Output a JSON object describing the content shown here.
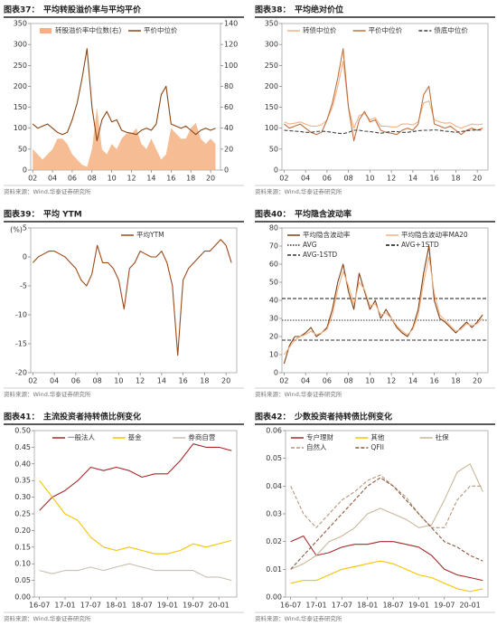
{
  "chart_data": [
    {
      "type": "line",
      "label": "图表37：",
      "title": "平均转股溢价率与平均平价",
      "source": "资料来源：Wind,华泰证券研究所",
      "x": [
        2,
        2.5,
        3,
        3.5,
        4,
        4.5,
        5,
        5.5,
        6,
        6.5,
        7,
        7.5,
        8,
        8.5,
        9,
        9.5,
        10,
        10.5,
        11,
        11.5,
        12,
        12.5,
        13,
        13.5,
        14,
        14.5,
        15,
        15.5,
        16,
        16.5,
        17,
        17.5,
        18,
        18.5,
        19,
        19.5,
        20,
        20.5
      ],
      "xlim": [
        1.8,
        21
      ],
      "xticks": [
        {
          "value": 2,
          "label": "02"
        },
        {
          "value": 4,
          "label": "04"
        },
        {
          "value": 6,
          "label": "06"
        },
        {
          "value": 8,
          "label": "08"
        },
        10,
        12,
        14,
        16,
        18,
        20
      ],
      "ylim": [
        0,
        350
      ],
      "yticks": [
        0,
        50,
        100,
        150,
        200,
        250,
        300,
        350
      ],
      "y2lim": [
        0,
        140
      ],
      "y2ticks": [
        0,
        20,
        40,
        60,
        80,
        100,
        120,
        140
      ],
      "series": [
        {
          "name": "转股溢价率中位数(右)",
          "color": "#f4b183",
          "style": "area",
          "axis": "y2",
          "values": [
            20,
            15,
            10,
            15,
            20,
            30,
            30,
            25,
            15,
            10,
            5,
            3,
            20,
            60,
            20,
            15,
            25,
            20,
            30,
            35,
            35,
            40,
            25,
            20,
            30,
            20,
            10,
            15,
            40,
            35,
            30,
            30,
            40,
            45,
            30,
            25,
            30,
            25
          ]
        },
        {
          "name": "平价中位价",
          "color": "#8b4513",
          "style": "solid",
          "values": [
            110,
            100,
            105,
            110,
            100,
            90,
            85,
            90,
            120,
            160,
            220,
            290,
            150,
            70,
            120,
            140,
            115,
            120,
            95,
            90,
            88,
            85,
            95,
            100,
            95,
            110,
            180,
            200,
            110,
            105,
            100,
            105,
            95,
            85,
            95,
            100,
            95,
            100
          ]
        }
      ]
    },
    {
      "type": "line",
      "label": "图表38：",
      "title": "平均绝对价位",
      "source": "资料来源：Wind,华泰证券研究所",
      "x": [
        2,
        2.5,
        3,
        3.5,
        4,
        4.5,
        5,
        5.5,
        6,
        6.5,
        7,
        7.5,
        8,
        8.5,
        9,
        9.5,
        10,
        10.5,
        11,
        11.5,
        12,
        12.5,
        13,
        13.5,
        14,
        14.5,
        15,
        15.5,
        16,
        16.5,
        17,
        17.5,
        18,
        18.5,
        19,
        19.5,
        20,
        20.5
      ],
      "xlim": [
        1.8,
        21
      ],
      "xticks": [
        {
          "value": 2,
          "label": "02"
        },
        {
          "value": 4,
          "label": "04"
        },
        {
          "value": 6,
          "label": "06"
        },
        {
          "value": 8,
          "label": "08"
        },
        10,
        12,
        14,
        16,
        18,
        20
      ],
      "ylim": [
        0,
        350
      ],
      "yticks": [
        0,
        50,
        100,
        150,
        200,
        250,
        300,
        350
      ],
      "series": [
        {
          "name": "转债中位价",
          "color": "#f4b183",
          "style": "solid",
          "values": [
            115,
            110,
            112,
            115,
            110,
            105,
            105,
            108,
            120,
            150,
            200,
            260,
            150,
            100,
            130,
            135,
            120,
            125,
            105,
            105,
            103,
            103,
            110,
            110,
            108,
            115,
            160,
            165,
            120,
            115,
            112,
            113,
            105,
            100,
            105,
            110,
            108,
            110
          ]
        },
        {
          "name": "平价中位价",
          "color": "#c07040",
          "style": "solid",
          "values": [
            110,
            100,
            105,
            110,
            100,
            90,
            85,
            90,
            120,
            160,
            220,
            290,
            150,
            70,
            120,
            140,
            115,
            120,
            95,
            90,
            88,
            85,
            95,
            100,
            95,
            110,
            180,
            200,
            110,
            105,
            100,
            105,
            95,
            85,
            95,
            100,
            95,
            100
          ]
        },
        {
          "name": "债底中位价",
          "color": "#404040",
          "style": "dashed",
          "values": [
            95,
            94,
            93,
            92,
            90,
            90,
            92,
            93,
            92,
            90,
            88,
            87,
            90,
            95,
            95,
            93,
            92,
            90,
            88,
            90,
            92,
            92,
            90,
            90,
            92,
            94,
            95,
            95,
            96,
            95,
            93,
            92,
            90,
            92,
            94,
            95,
            96,
            95
          ]
        }
      ]
    },
    {
      "type": "line",
      "label": "图表39：",
      "title": "平均 YTM",
      "source": "资料来源：Wind,华泰证券研究所",
      "y_label": "(%)",
      "x": [
        2,
        2.5,
        3,
        3.5,
        4,
        4.5,
        5,
        5.5,
        6,
        6.5,
        7,
        7.5,
        8,
        8.5,
        9,
        9.5,
        10,
        10.5,
        11,
        11.5,
        12,
        12.5,
        13,
        13.5,
        14,
        14.5,
        15,
        15.5,
        16,
        16.5,
        17,
        17.5,
        18,
        18.5,
        19,
        19.5,
        20,
        20.5
      ],
      "xlim": [
        1.8,
        21
      ],
      "xticks": [
        {
          "value": 2,
          "label": "02"
        },
        {
          "value": 4,
          "label": "04"
        },
        {
          "value": 6,
          "label": "06"
        },
        {
          "value": 8,
          "label": "08"
        },
        10,
        12,
        14,
        16,
        18,
        20
      ],
      "ylim": [
        -20,
        5
      ],
      "yticks": [
        -20,
        -15,
        -10,
        -5,
        0,
        5
      ],
      "series": [
        {
          "name": "平均YTM",
          "color": "#9c4a1a",
          "style": "solid",
          "values": [
            -1,
            0,
            0.5,
            1,
            1,
            0.5,
            0,
            -1,
            -2,
            -4,
            -5,
            -3,
            2,
            -1,
            -1,
            -2,
            -4,
            -9,
            -2,
            -1,
            1,
            0.5,
            0,
            0,
            1,
            -1,
            -5,
            -17,
            -4,
            -2,
            -1,
            0,
            1,
            1,
            2,
            3,
            2,
            -1
          ]
        }
      ]
    },
    {
      "type": "line",
      "label": "图表40：",
      "title": "平均隐含波动率",
      "source": "资料来源：Wind,华泰证券研究所",
      "x": [
        2,
        2.5,
        3,
        3.5,
        4,
        4.5,
        5,
        5.5,
        6,
        6.5,
        7,
        7.5,
        8,
        8.5,
        9,
        9.5,
        10,
        10.5,
        11,
        11.5,
        12,
        12.5,
        13,
        13.5,
        14,
        14.5,
        15,
        15.5,
        16,
        16.5,
        17,
        17.5,
        18,
        18.5,
        19,
        19.5,
        20,
        20.5
      ],
      "xlim": [
        1.8,
        21
      ],
      "xticks": [
        {
          "value": 2,
          "label": "02"
        },
        {
          "value": 4,
          "label": "04"
        },
        {
          "value": 6,
          "label": "06"
        },
        {
          "value": 8,
          "label": "08"
        },
        10,
        12,
        14,
        16,
        18,
        20
      ],
      "ylim": [
        0,
        80
      ],
      "yticks": [
        0,
        10,
        20,
        30,
        40,
        50,
        60,
        70,
        80
      ],
      "series": [
        {
          "name": "平均隐含波动率",
          "color": "#7f3f12",
          "style": "solid",
          "values": [
            5,
            15,
            20,
            20,
            22,
            25,
            20,
            22,
            25,
            35,
            50,
            60,
            45,
            35,
            55,
            45,
            35,
            40,
            30,
            35,
            30,
            25,
            22,
            20,
            25,
            35,
            55,
            70,
            40,
            30,
            28,
            25,
            22,
            25,
            28,
            25,
            28,
            32
          ]
        },
        {
          "name": "平均隐含波动率MA20",
          "color": "#f4b183",
          "style": "solid",
          "values": [
            10,
            14,
            18,
            20,
            21,
            23,
            21,
            22,
            24,
            32,
            46,
            56,
            48,
            38,
            50,
            46,
            37,
            38,
            32,
            33,
            30,
            26,
            23,
            21,
            24,
            32,
            50,
            64,
            44,
            32,
            29,
            26,
            23,
            24,
            27,
            26,
            27,
            30
          ]
        }
      ],
      "reference_lines": [
        {
          "name": "AVG",
          "value": 29,
          "color": "#333333",
          "style": "dotted"
        },
        {
          "name": "AVG+1STD",
          "value": 41,
          "color": "#111111",
          "style": "dashed"
        },
        {
          "name": "AVG-1STD",
          "value": 18,
          "color": "#333333",
          "style": "dashed"
        }
      ]
    },
    {
      "type": "line",
      "label": "图表41：",
      "title": "主流投资者持转债比例变化",
      "source": "资料来源：Wind,华泰证券研究所",
      "x": [
        16.5,
        16.75,
        17,
        17.25,
        17.5,
        17.75,
        18,
        18.25,
        18.5,
        18.75,
        19,
        19.25,
        19.5,
        19.75,
        20,
        20.25
      ],
      "xlim": [
        16.4,
        20.35
      ],
      "xticks": [
        {
          "value": 16.5,
          "label": "16-07"
        },
        {
          "value": 17,
          "label": "17-01"
        },
        {
          "value": 17.5,
          "label": "17-07"
        },
        {
          "value": 18,
          "label": "18-01"
        },
        {
          "value": 18.5,
          "label": "18-07"
        },
        {
          "value": 19,
          "label": "19-01"
        },
        {
          "value": 19.5,
          "label": "19-07"
        },
        {
          "value": 20,
          "label": "20-01"
        }
      ],
      "ylim": [
        0,
        0.5
      ],
      "yticks": [
        {
          "value": 0,
          "label": "0.00"
        },
        0.05,
        {
          "value": 0.1,
          "label": "0.10"
        },
        0.15,
        {
          "value": 0.2,
          "label": "0.20"
        },
        0.25,
        {
          "value": 0.3,
          "label": "0.30"
        },
        0.35,
        {
          "value": 0.4,
          "label": "0.40"
        },
        0.45,
        {
          "value": 0.5,
          "label": "0.50"
        }
      ],
      "series": [
        {
          "name": "一般法人",
          "color": "#a52a2a",
          "style": "solid",
          "values": [
            0.26,
            0.3,
            0.32,
            0.35,
            0.39,
            0.38,
            0.39,
            0.38,
            0.36,
            0.37,
            0.37,
            0.41,
            0.46,
            0.45,
            0.45,
            0.44
          ]
        },
        {
          "name": "基金",
          "color": "#f5c400",
          "style": "solid",
          "values": [
            0.35,
            0.3,
            0.25,
            0.23,
            0.18,
            0.15,
            0.14,
            0.15,
            0.14,
            0.13,
            0.13,
            0.14,
            0.16,
            0.15,
            0.16,
            0.17
          ]
        },
        {
          "name": "券商自营",
          "color": "#c8c0b0",
          "style": "solid",
          "values": [
            0.08,
            0.07,
            0.08,
            0.08,
            0.09,
            0.08,
            0.09,
            0.1,
            0.09,
            0.08,
            0.08,
            0.08,
            0.08,
            0.06,
            0.06,
            0.05
          ]
        }
      ]
    },
    {
      "type": "line",
      "label": "图表42：",
      "title": "少数投资者持转债比例变化",
      "source": "资料来源：Wind,华泰证券研究所",
      "x": [
        16.5,
        16.75,
        17,
        17.25,
        17.5,
        17.75,
        18,
        18.25,
        18.5,
        18.75,
        19,
        19.25,
        19.5,
        19.75,
        20,
        20.25
      ],
      "xlim": [
        16.4,
        20.35
      ],
      "xticks": [
        {
          "value": 16.5,
          "label": "16-07"
        },
        {
          "value": 17,
          "label": "17-01"
        },
        {
          "value": 17.5,
          "label": "17-07"
        },
        {
          "value": 18,
          "label": "18-01"
        },
        {
          "value": 18.5,
          "label": "18-07"
        },
        {
          "value": 19,
          "label": "19-01"
        },
        {
          "value": 19.5,
          "label": "19-07"
        },
        {
          "value": 20,
          "label": "20-01"
        }
      ],
      "ylim": [
        0,
        0.06
      ],
      "yticks": [
        {
          "value": 0,
          "label": "0.00"
        },
        0.01,
        0.02,
        0.03,
        0.04,
        0.05,
        0.06
      ],
      "series": [
        {
          "name": "专户理财",
          "color": "#a52a2a",
          "style": "solid",
          "values": [
            0.02,
            0.022,
            0.015,
            0.016,
            0.018,
            0.019,
            0.019,
            0.02,
            0.02,
            0.019,
            0.018,
            0.015,
            0.01,
            0.008,
            0.007,
            0.006
          ]
        },
        {
          "name": "其他",
          "color": "#f5c400",
          "style": "solid",
          "values": [
            0.005,
            0.006,
            0.006,
            0.008,
            0.01,
            0.011,
            0.012,
            0.013,
            0.012,
            0.01,
            0.008,
            0.007,
            0.005,
            0.003,
            0.002,
            0.003
          ]
        },
        {
          "name": "社保",
          "color": "#c8b89a",
          "style": "solid",
          "values": [
            0.01,
            0.012,
            0.015,
            0.02,
            0.022,
            0.025,
            0.03,
            0.032,
            0.03,
            0.028,
            0.025,
            0.026,
            0.035,
            0.045,
            0.048,
            0.038
          ]
        },
        {
          "name": "自然人",
          "color": "#b8967a",
          "style": "dashed",
          "values": [
            0.04,
            0.03,
            0.025,
            0.03,
            0.035,
            0.038,
            0.042,
            0.044,
            0.04,
            0.036,
            0.03,
            0.025,
            0.025,
            0.035,
            0.04,
            0.04
          ]
        },
        {
          "name": "QFII",
          "color": "#8b5a3c",
          "style": "dashed",
          "values": [
            0.01,
            0.015,
            0.02,
            0.025,
            0.03,
            0.035,
            0.04,
            0.043,
            0.04,
            0.035,
            0.03,
            0.025,
            0.02,
            0.018,
            0.015,
            0.013
          ]
        }
      ]
    }
  ]
}
